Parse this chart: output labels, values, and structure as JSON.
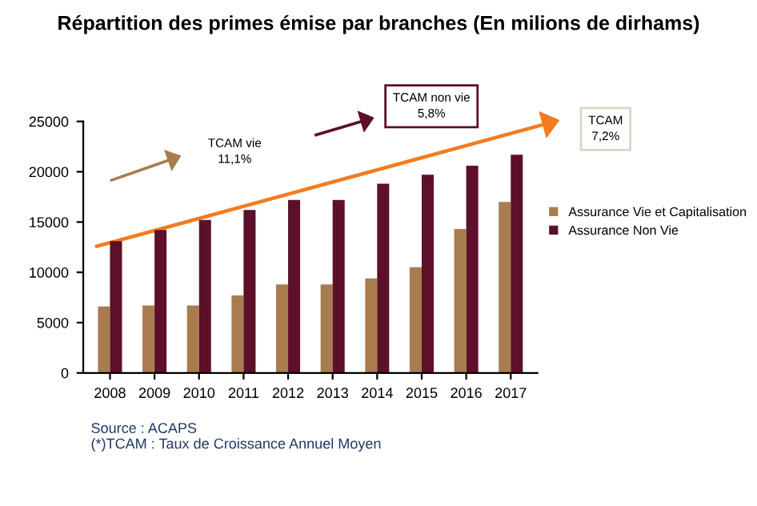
{
  "chart_data": {
    "type": "bar",
    "title": "Répartition des primes émise par branches (En milions de dirhams)",
    "categories": [
      "2008",
      "2009",
      "2010",
      "2011",
      "2012",
      "2013",
      "2014",
      "2015",
      "2016",
      "2017"
    ],
    "series": [
      {
        "name": "Assurance Vie et Capitalisation",
        "color": "#a97c50",
        "values": [
          6600,
          6700,
          6700,
          7700,
          8800,
          8800,
          9400,
          10500,
          14300,
          17000
        ]
      },
      {
        "name": "Assurance Non Vie",
        "color": "#5c1029",
        "values": [
          13100,
          14200,
          15200,
          16200,
          17200,
          17200,
          18800,
          19700,
          20600,
          21700
        ]
      }
    ],
    "ylim": [
      0,
      25000
    ],
    "yticks": [
      0,
      5000,
      10000,
      15000,
      20000,
      25000
    ],
    "grid": false,
    "legend": "right",
    "annotations": [
      "TCAM vie\n11,1%",
      "TCAM non vie\n5,8%",
      "TCAM\n7,2%",
      "Source : ACAPS\n(*)TCAM : Taux de Croissance Annuel Moyen"
    ]
  }
}
